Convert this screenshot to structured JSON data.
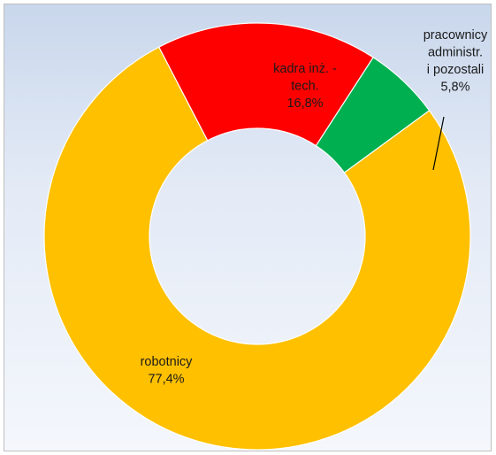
{
  "chart_data": {
    "type": "pie",
    "variant": "donut",
    "slices": [
      {
        "label_lines": [
          "robotnicy"
        ],
        "value_label": "77,4%",
        "value": 77.4,
        "color": "#ffc000"
      },
      {
        "label_lines": [
          "kadra inż. -",
          "tech."
        ],
        "value_label": "16,8%",
        "value": 16.8,
        "color": "#ff0000"
      },
      {
        "label_lines": [
          "pracownicy",
          "administr.",
          "i pozostali"
        ],
        "value_label": "5,8%",
        "value": 5.8,
        "color": "#00b050"
      }
    ],
    "start_slice": 1,
    "direction": "clockwise",
    "legend": "none"
  }
}
